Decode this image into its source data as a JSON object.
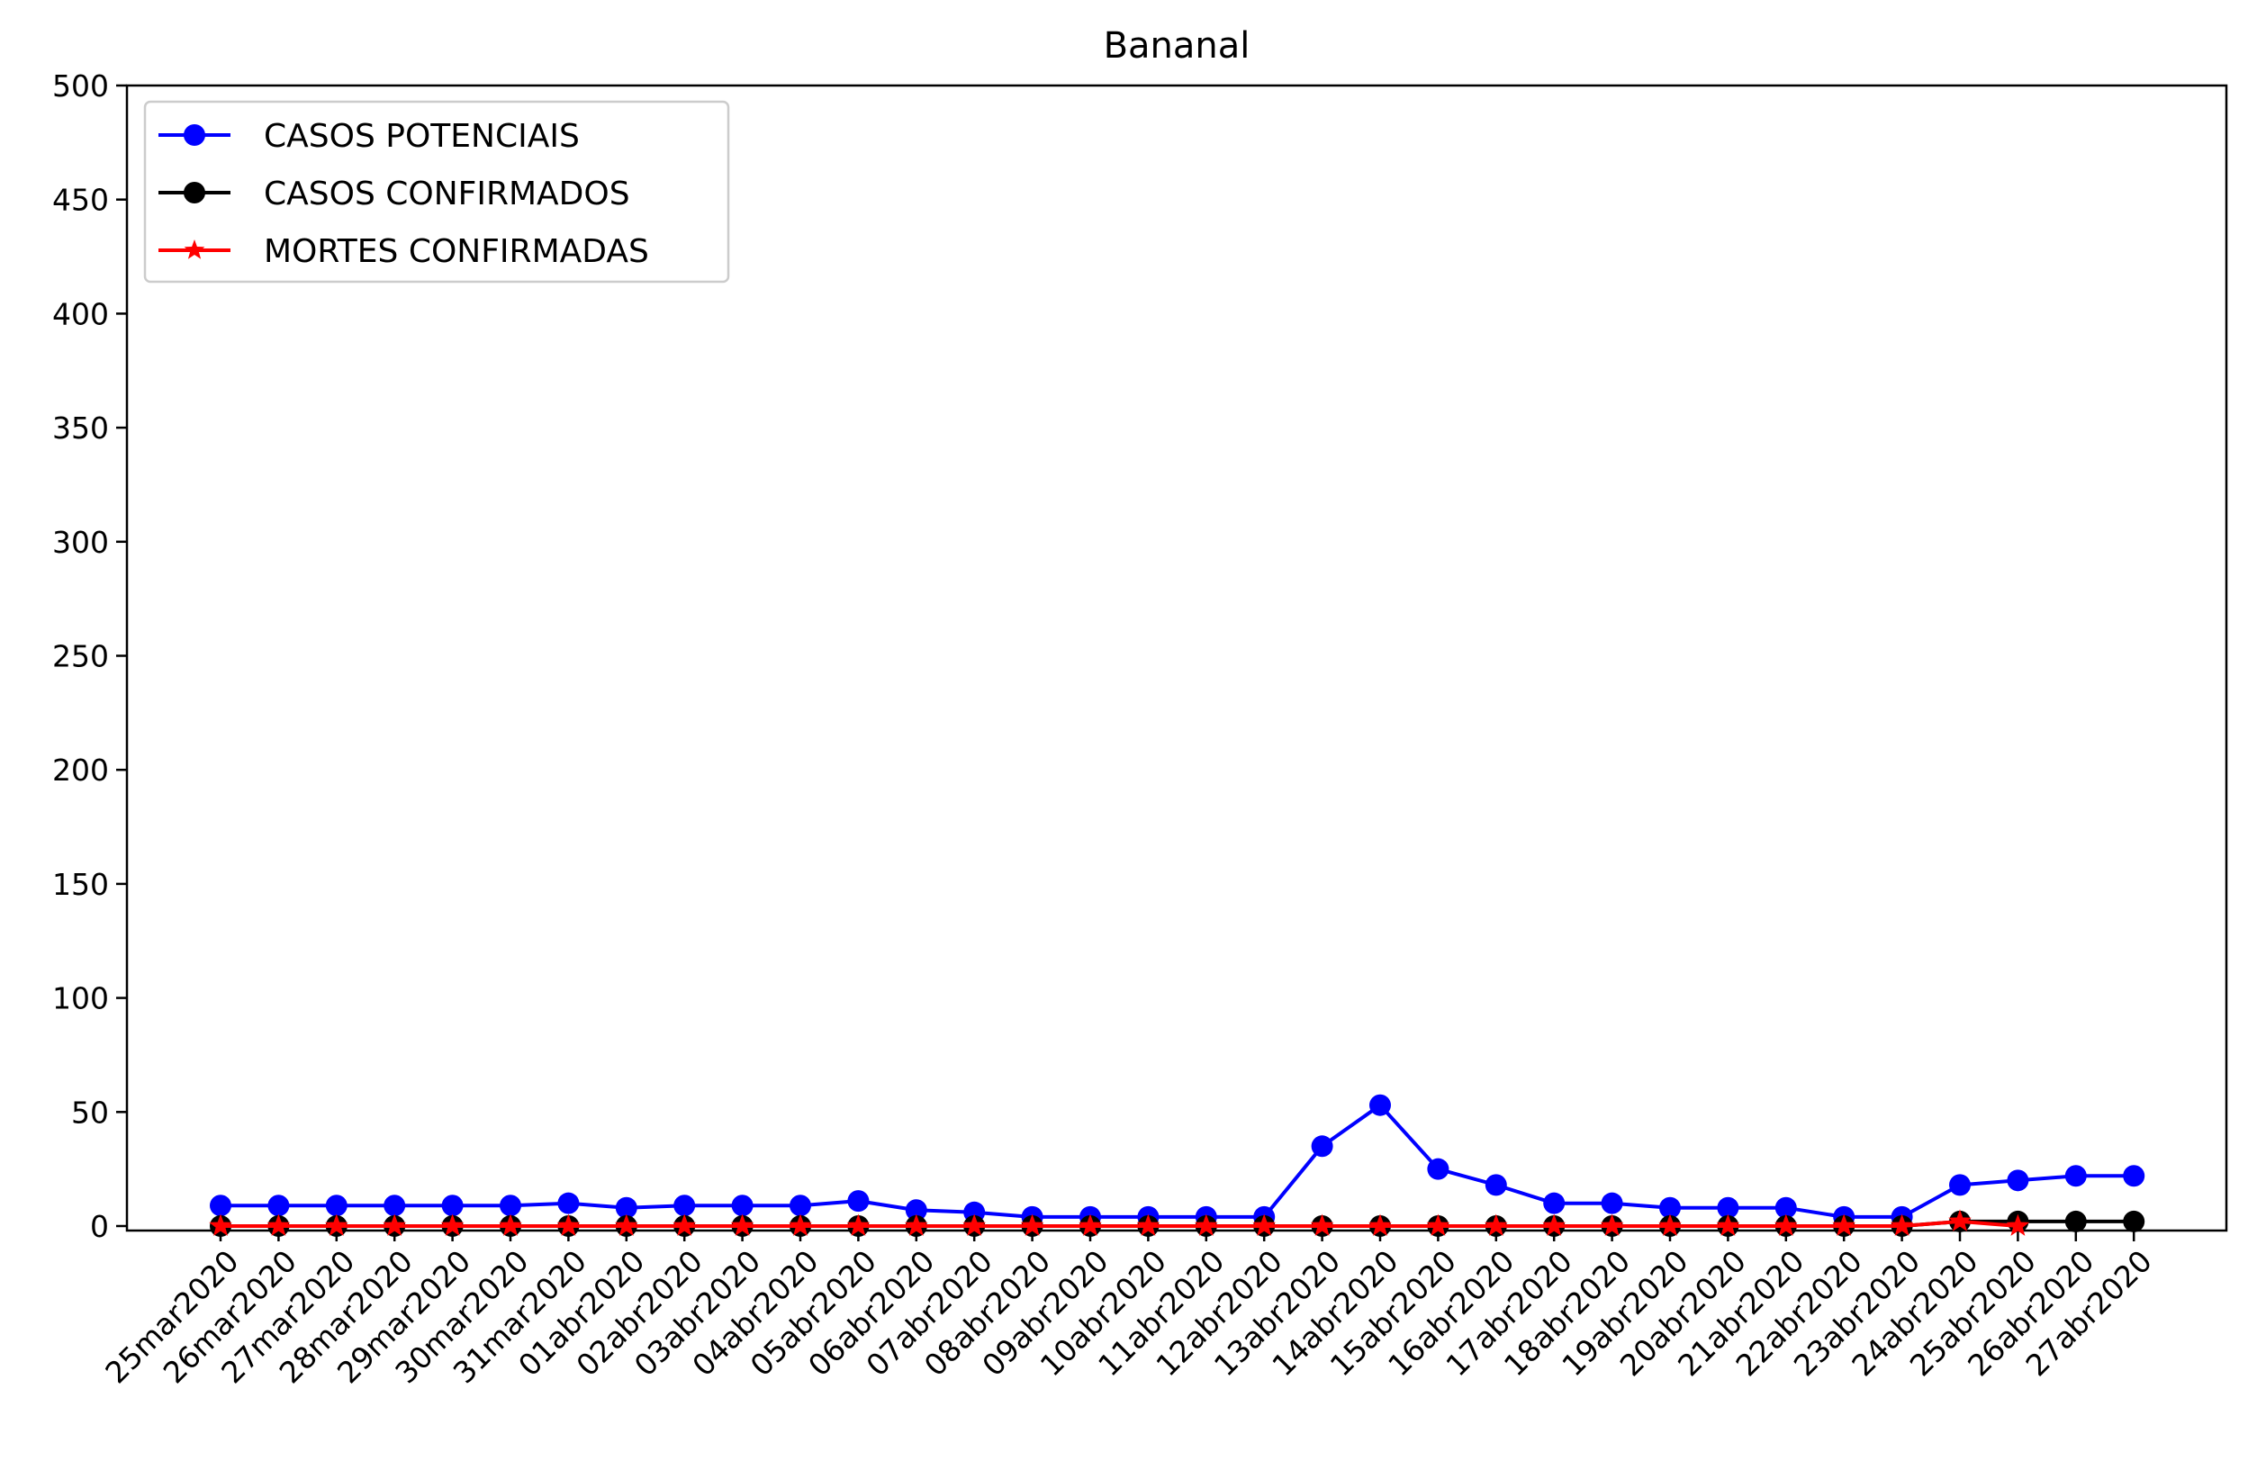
{
  "chart_data": {
    "type": "line",
    "title": "Bananal",
    "xlabel": "",
    "ylabel": "",
    "ylim": [
      0,
      500
    ],
    "yticks": [
      0,
      50,
      100,
      150,
      200,
      250,
      300,
      350,
      400,
      450,
      500
    ],
    "grid": false,
    "legend_position": "top-left",
    "categories": [
      "25mar2020",
      "26mar2020",
      "27mar2020",
      "28mar2020",
      "29mar2020",
      "30mar2020",
      "31mar2020",
      "01abr2020",
      "02abr2020",
      "03abr2020",
      "04abr2020",
      "05abr2020",
      "06abr2020",
      "07abr2020",
      "08abr2020",
      "09abr2020",
      "10abr2020",
      "11abr2020",
      "12abr2020",
      "13abr2020",
      "14abr2020",
      "15abr2020",
      "16abr2020",
      "17abr2020",
      "18abr2020",
      "19abr2020",
      "20abr2020",
      "21abr2020",
      "22abr2020",
      "23abr2020",
      "24abr2020",
      "25abr2020",
      "26abr2020",
      "27abr2020"
    ],
    "series": [
      {
        "name": "CASOS POTENCIAIS",
        "color": "#0000ff",
        "marker": "circle",
        "values": [
          9,
          9,
          9,
          9,
          9,
          9,
          10,
          8,
          9,
          9,
          9,
          11,
          7,
          6,
          4,
          4,
          4,
          4,
          4,
          35,
          53,
          25,
          18,
          10,
          10,
          8,
          8,
          8,
          4,
          4,
          18,
          20,
          22,
          22
        ]
      },
      {
        "name": "CASOS CONFIRMADOS",
        "color": "#000000",
        "marker": "circle",
        "values": [
          0,
          0,
          0,
          0,
          0,
          0,
          0,
          0,
          0,
          0,
          0,
          0,
          0,
          0,
          0,
          0,
          0,
          0,
          0,
          0,
          0,
          0,
          0,
          0,
          0,
          0,
          0,
          0,
          0,
          0,
          2,
          2,
          2,
          2
        ]
      },
      {
        "name": "MORTES CONFIRMADAS",
        "color": "#ff0000",
        "marker": "star",
        "values": [
          0,
          0,
          0,
          0,
          0,
          0,
          0,
          0,
          0,
          0,
          0,
          0,
          0,
          0,
          0,
          0,
          0,
          0,
          0,
          0,
          0,
          0,
          0,
          0,
          0,
          0,
          0,
          0,
          0,
          0,
          2,
          0,
          null,
          null
        ]
      }
    ]
  }
}
